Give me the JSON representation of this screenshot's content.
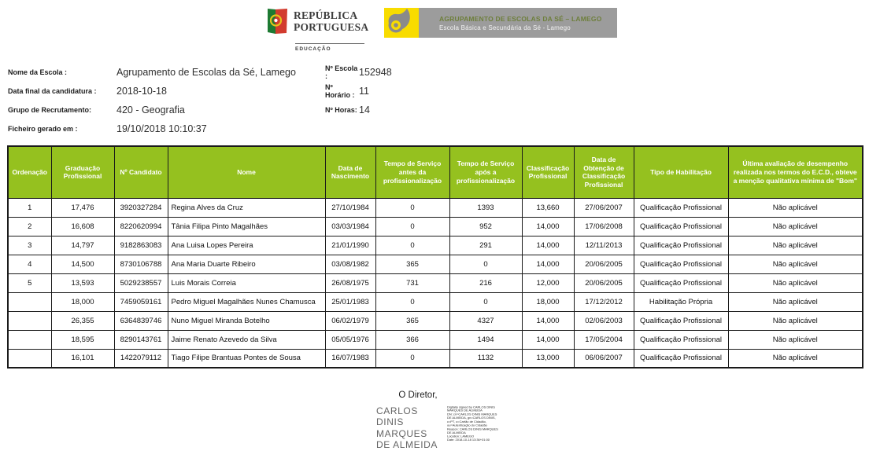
{
  "colors": {
    "header_green": "#95c11f",
    "banner_gray": "#9c9c9c",
    "logo_yellow": "#f8dc00",
    "banner_line1_green": "#6e7f3c"
  },
  "header": {
    "gov_logo": {
      "title": "REPÚBLICA\nPORTUGUESA",
      "subtitle": "EDUCAÇÃO"
    },
    "school_logo": {
      "line1": "AGRUPAMENTO DE ESCOLAS DA SÉ – LAMEGO",
      "line2": "Escola Básica e Secundária da Sé - Lamego"
    }
  },
  "meta": {
    "left": [
      {
        "label": "Nome da Escola :",
        "value": "Agrupamento de Escolas da Sé, Lamego"
      },
      {
        "label": "Data final da candidatura :",
        "value": "2018-10-18"
      },
      {
        "label": "Grupo de Recrutamento:",
        "value": "420 - Geografia"
      },
      {
        "label": "Ficheiro gerado em :",
        "value": "19/10/2018 10:10:37"
      }
    ],
    "right": [
      {
        "label": "Nº Escola :",
        "value": "152948"
      },
      {
        "label": "Nº Horário :",
        "value": "11"
      },
      {
        "label": "Nº Horas:",
        "value": "14"
      }
    ]
  },
  "table": {
    "columns": [
      "Ordenação",
      "Graduação Profissional",
      "Nº Candidato",
      "Nome",
      "Data de Nascimento",
      "Tempo de Serviço antes da profissionalização",
      "Tempo de Serviço após a profissionalização",
      "Classificação Profissional",
      "Data de Obtenção de Classificação Profissional",
      "Tipo de Habilitação",
      "Última avaliação de desempenho realizada nos termos do E.C.D., obteve a menção qualitativa mínima de \"Bom\""
    ],
    "rows": [
      [
        "1",
        "17,476",
        "3920327284",
        "Regina Alves da Cruz",
        "27/10/1984",
        "0",
        "1393",
        "13,660",
        "27/06/2007",
        "Qualificação Profissional",
        "Não aplicável"
      ],
      [
        "2",
        "16,608",
        "8220620994",
        "Tânia Filipa Pinto Magalhães",
        "03/03/1984",
        "0",
        "952",
        "14,000",
        "17/06/2008",
        "Qualificação Profissional",
        "Não aplicável"
      ],
      [
        "3",
        "14,797",
        "9182863083",
        "Ana Luisa Lopes Pereira",
        "21/01/1990",
        "0",
        "291",
        "14,000",
        "12/11/2013",
        "Qualificação Profissional",
        "Não aplicável"
      ],
      [
        "4",
        "14,500",
        "8730106788",
        "Ana Maria Duarte Ribeiro",
        "03/08/1982",
        "365",
        "0",
        "14,000",
        "20/06/2005",
        "Qualificação Profissional",
        "Não aplicável"
      ],
      [
        "5",
        "13,593",
        "5029238557",
        "Luis Morais Correia",
        "26/08/1975",
        "731",
        "216",
        "12,000",
        "20/06/2005",
        "Qualificação Profissional",
        "Não aplicável"
      ],
      [
        "",
        "18,000",
        "7459059161",
        "Pedro Miguel Magalhães Nunes Chamusca",
        "25/01/1983",
        "0",
        "0",
        "18,000",
        "17/12/2012",
        "Habilitação Própria",
        "Não aplicável"
      ],
      [
        "",
        "26,355",
        "6364839746",
        "Nuno Miguel Miranda Botelho",
        "06/02/1979",
        "365",
        "4327",
        "14,000",
        "02/06/2003",
        "Qualificação Profissional",
        "Não aplicável"
      ],
      [
        "",
        "18,595",
        "8290143761",
        "Jaime Renato Azevedo da Silva",
        "05/05/1976",
        "366",
        "1494",
        "14,000",
        "17/05/2004",
        "Qualificação Profissional",
        "Não aplicável"
      ],
      [
        "",
        "16,101",
        "1422079112",
        "Tiago Filipe Brantuas Pontes de Sousa",
        "16/07/1983",
        "0",
        "1132",
        "13,000",
        "06/06/2007",
        "Qualificação Profissional",
        "Não aplicável"
      ]
    ]
  },
  "footer": {
    "director_label": "O Diretor,",
    "signature_name": "CARLOS\nDINIS\nMARQUES\nDE ALMEIDA",
    "signature_details": "Digitally signed by CARLOS DINIS\nMARQUES DE ALMEIDA\nDN: cn=CARLOS DINIS MARQUES\nDE ALMEIDA, gn=CARLOS DINIS,\nc=PT, o=Cartão de Cidadão,\nou=Autenticação do Cidadão\nReason: CARLOS DINIS MARQUES\nDE ALMEIDA\nLocation: LAMEGO\nDate: 2018-10-18 13:36+01:00"
  }
}
